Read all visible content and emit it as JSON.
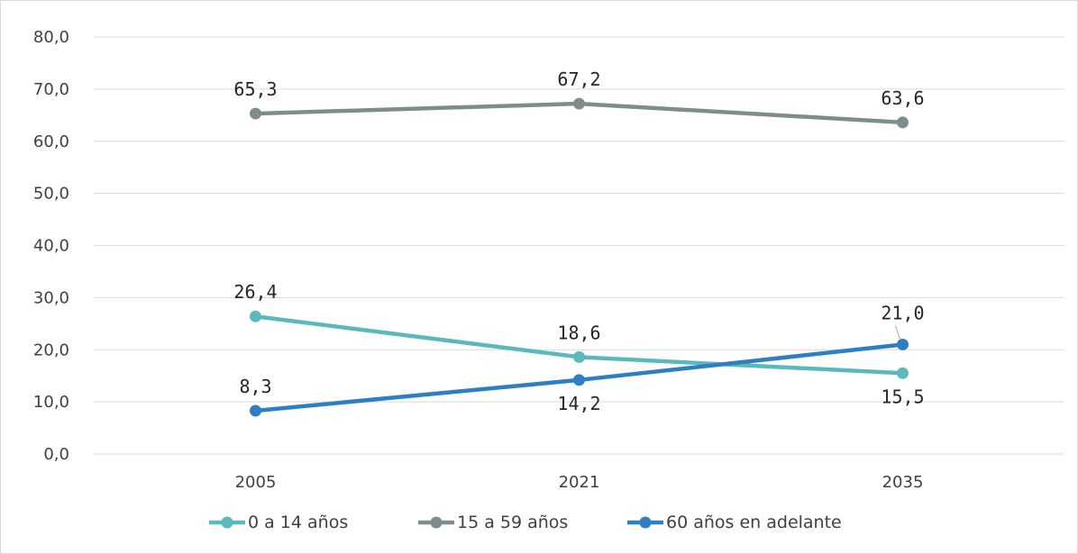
{
  "chart_data": {
    "type": "line",
    "categories": [
      "2005",
      "2021",
      "2035"
    ],
    "ylim": [
      0,
      80
    ],
    "y_ticks": [
      0,
      10,
      20,
      30,
      40,
      50,
      60,
      70,
      80
    ],
    "y_tick_labels": [
      "0,0",
      "10,0",
      "20,0",
      "30,0",
      "40,0",
      "50,0",
      "60,0",
      "70,0",
      "80,0"
    ],
    "grid": true,
    "legend_position": "bottom",
    "series": [
      {
        "name": "0 a 14 años",
        "values": [
          26.4,
          18.6,
          15.5
        ],
        "labels": [
          "26,4",
          "18,6",
          "15,5"
        ],
        "color": "#5ab9bd"
      },
      {
        "name": "15 a 59 años",
        "values": [
          65.3,
          67.2,
          63.6
        ],
        "labels": [
          "65,3",
          "67,2",
          "63,6"
        ],
        "color": "#7f8c8d"
      },
      {
        "name": "60 años en adelante",
        "values": [
          8.3,
          14.2,
          21.0
        ],
        "labels": [
          "8,3",
          "14,2",
          "21,0"
        ],
        "color": "#2e7fc1"
      }
    ]
  }
}
